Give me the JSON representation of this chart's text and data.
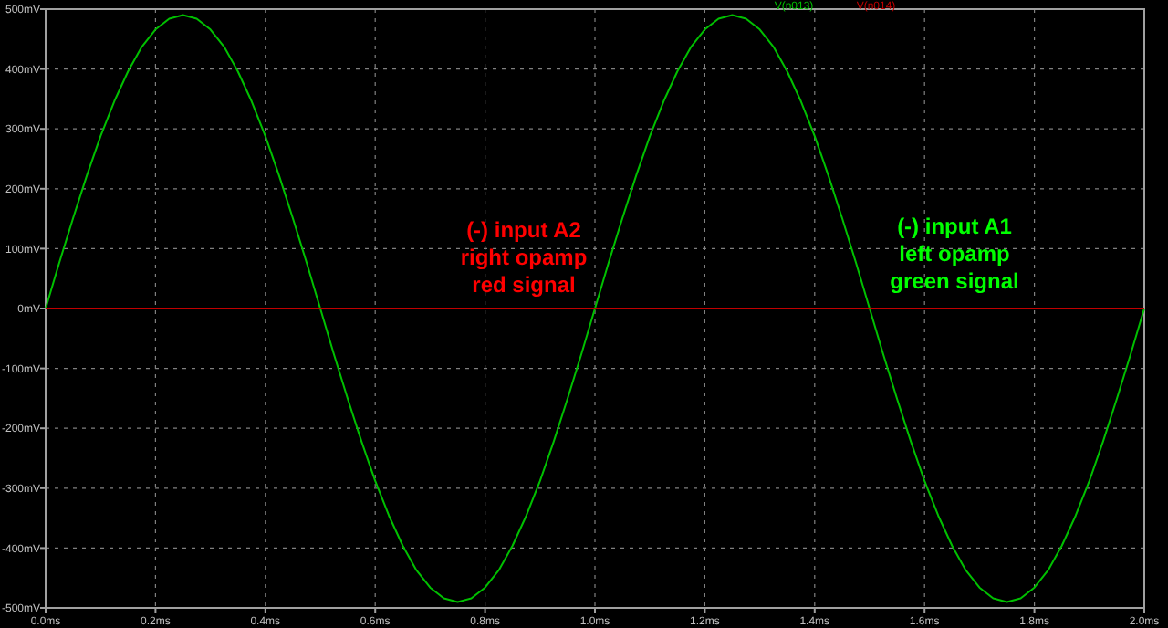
{
  "chart_data": {
    "type": "line",
    "legend": "top",
    "grid": true,
    "line_style": "solid",
    "marker": "none",
    "xlim": [
      0,
      2
    ],
    "ylim": [
      -500,
      500
    ],
    "xticks": [
      {
        "value": 0,
        "label": "0.0ms"
      },
      {
        "value": 0.2,
        "label": "0.2ms"
      },
      {
        "value": 0.4,
        "label": "0.4ms"
      },
      {
        "value": 0.6,
        "label": "0.6ms"
      },
      {
        "value": 0.8,
        "label": "0.8ms"
      },
      {
        "value": 1,
        "label": "1.0ms"
      },
      {
        "value": 1.2,
        "label": "1.2ms"
      },
      {
        "value": 1.4,
        "label": "1.4ms"
      },
      {
        "value": 1.6,
        "label": "1.6ms"
      },
      {
        "value": 1.8,
        "label": "1.8ms"
      },
      {
        "value": 2,
        "label": "2.0ms"
      }
    ],
    "yticks": [
      {
        "value": -500,
        "label": "-500mV"
      },
      {
        "value": -400,
        "label": "-400mV"
      },
      {
        "value": -300,
        "label": "-300mV"
      },
      {
        "value": -200,
        "label": "-200mV"
      },
      {
        "value": -100,
        "label": "-100mV"
      },
      {
        "value": 0,
        "label": "0mV"
      },
      {
        "value": 100,
        "label": "100mV"
      },
      {
        "value": 200,
        "label": "200mV"
      },
      {
        "value": 300,
        "label": "300mV"
      },
      {
        "value": 400,
        "label": "400mV"
      },
      {
        "value": 500,
        "label": "500mV"
      }
    ],
    "annotations": [
      "(-) input A1\nleft opamp\ngreen signal",
      "(-) input A2\nright opamp\nred signal"
    ],
    "series": [
      {
        "name": "V(n013)",
        "color": "#00c000",
        "x": [
          0,
          0.025,
          0.05,
          0.075,
          0.1,
          0.125,
          0.15,
          0.175,
          0.2,
          0.225,
          0.25,
          0.275,
          0.3,
          0.325,
          0.35,
          0.375,
          0.4,
          0.425,
          0.45,
          0.475,
          0.5,
          0.525,
          0.55,
          0.575,
          0.6,
          0.625,
          0.65,
          0.675,
          0.7,
          0.725,
          0.75,
          0.775,
          0.8,
          0.825,
          0.85,
          0.875,
          0.9,
          0.925,
          0.95,
          0.975,
          1,
          1.025,
          1.05,
          1.075,
          1.1,
          1.125,
          1.15,
          1.175,
          1.2,
          1.225,
          1.25,
          1.275,
          1.3,
          1.325,
          1.35,
          1.375,
          1.4,
          1.425,
          1.45,
          1.475,
          1.5,
          1.525,
          1.55,
          1.575,
          1.6,
          1.625,
          1.65,
          1.675,
          1.7,
          1.725,
          1.75,
          1.775,
          1.8,
          1.825,
          1.85,
          1.875,
          1.9,
          1.925,
          1.95,
          1.975,
          2
        ],
        "values": [
          0,
          77,
          151,
          222,
          288,
          346,
          396,
          437,
          466,
          484,
          490,
          484,
          466,
          437,
          396,
          346,
          288,
          222,
          151,
          77,
          0,
          -77,
          -151,
          -222,
          -288,
          -346,
          -396,
          -437,
          -466,
          -484,
          -490,
          -484,
          -466,
          -437,
          -396,
          -346,
          -288,
          -222,
          -151,
          -77,
          0,
          77,
          151,
          222,
          288,
          346,
          396,
          437,
          466,
          484,
          490,
          484,
          466,
          437,
          396,
          346,
          288,
          222,
          151,
          77,
          0,
          -77,
          -151,
          -222,
          -288,
          -346,
          -396,
          -437,
          -466,
          -484,
          -490,
          -484,
          -466,
          -437,
          -396,
          -346,
          -288,
          -222,
          -151,
          -77,
          0
        ]
      },
      {
        "name": "V(n014)",
        "color": "#c00000",
        "x": [
          0,
          2
        ],
        "values": [
          0,
          0
        ]
      }
    ]
  }
}
